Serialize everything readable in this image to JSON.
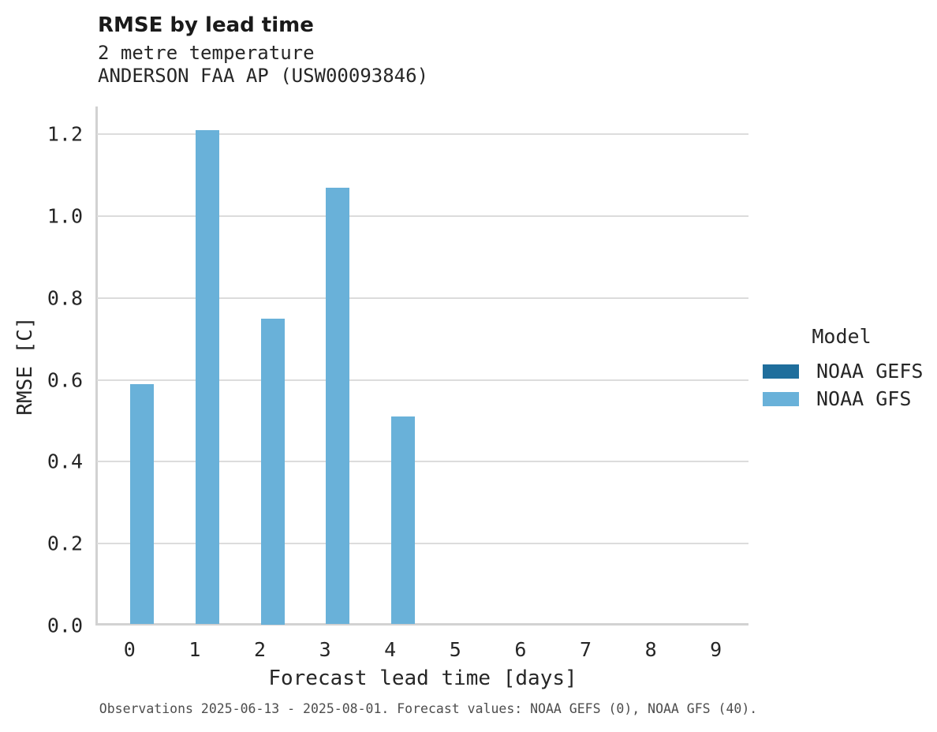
{
  "chart_data": {
    "type": "bar",
    "title": "RMSE by lead time",
    "subtitle_line1": "2 metre temperature",
    "subtitle_line2": "ANDERSON FAA AP (USW00093846)",
    "xlabel": "Forecast lead time [days]",
    "ylabel": "RMSE [C]",
    "categories": [
      "0",
      "1",
      "2",
      "3",
      "4",
      "5",
      "6",
      "7",
      "8",
      "9"
    ],
    "yticks": [
      0.0,
      0.2,
      0.4,
      0.6,
      0.8,
      1.0,
      1.2
    ],
    "ylim": [
      0.0,
      1.27
    ],
    "grid": "horizontal",
    "legend_title": "Model",
    "legend_position": "center-right",
    "series": [
      {
        "name": "NOAA GEFS",
        "color": "#1f6e9c",
        "values": [
          null,
          null,
          null,
          null,
          null,
          null,
          null,
          null,
          null,
          null
        ]
      },
      {
        "name": "NOAA GFS",
        "color": "#69b1d9",
        "values": [
          0.59,
          1.21,
          0.75,
          1.07,
          0.51,
          null,
          null,
          null,
          null,
          null
        ]
      }
    ],
    "caption": "Observations 2025-06-13 - 2025-08-01. Forecast values: NOAA GEFS (0), NOAA GFS (40)."
  },
  "colors": {
    "gridline": "#dcdcdc",
    "spine": "#d2d2d2",
    "text": "#262626",
    "caption": "#4d4d4d"
  }
}
